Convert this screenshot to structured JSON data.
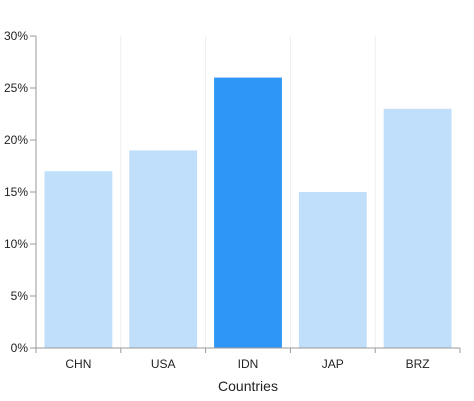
{
  "chart_data": {
    "type": "bar",
    "categories": [
      "CHN",
      "USA",
      "IDN",
      "JAP",
      "BRZ"
    ],
    "values": [
      17,
      19,
      26,
      15,
      23
    ],
    "highlighted_category": "IDN",
    "xlabel": "Countries",
    "ylabel": "",
    "ylim": [
      0,
      30
    ],
    "yticks": [
      0,
      5,
      10,
      15,
      20,
      25,
      30
    ],
    "ytick_labels": [
      "0%",
      "5%",
      "10%",
      "15%",
      "20%",
      "25%",
      "30%"
    ],
    "grid": {
      "vertical": true,
      "horizontal": false
    },
    "colors": {
      "bar": "#bfdffb",
      "highlight": "#2e96f7",
      "axis": "#9a9a9a",
      "grid": "#eeeeee"
    }
  }
}
